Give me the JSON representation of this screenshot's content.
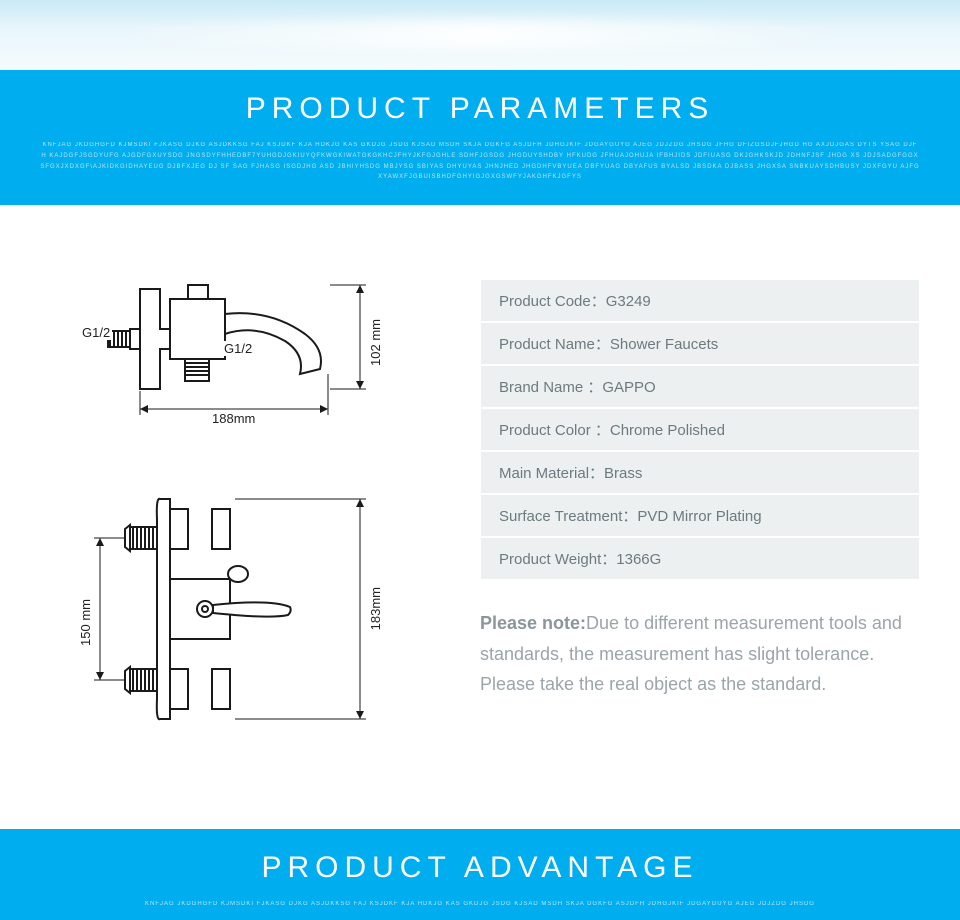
{
  "colors": {
    "banner_bg": "#00aeef",
    "banner_text": "#ffffff",
    "spec_row_bg": "#ecf0f1",
    "spec_text": "#6d7a7f",
    "note_text": "#9aa5aa",
    "diagram_stroke": "#1a1a1a"
  },
  "header1": {
    "title": "PRODUCT PARAMETERS",
    "decor": "KNFJAG JKDGHGFD KJMSDKI FJKASG DJKG ASJDKKSG FAJ KSJDKF KJA HDKJG KAS GKDJG JSDG KJSAD MSDH SKJA DGKFG ASJDFH JDHGJKIF JDGAYGUYG AJEG JDJZDG JHSDG JFHG DFIZGSDJFJHGD HG AXJDJGAS DYTS YSAG DJFH KAJDGFJSGDYUFG AJGDFGXUYSDG JNGSDYFHHEDBF7YUHGDJGKIUYQFKWGKIWATGKGKHCJFHYJKFGJGHLE SDHFJGSDG JHGDUYSHDBY HFKUDG JFHUAJOHUJA IFBHJIDS JDFIUASG DKJGHKSKJD JDHNFJSF JHDG XS JDJSADGFGGXSFGXJXDXGF\\AJKIDKGIDHAYEUG DJBFXJEG DJ SF SAG FJHASG ISGDJHG ASD JBHIYHSDG MBJYSG SBIYAS DHYUYAS JHNJHED JHGDHFVBYUEA DBFYUAG DBYAFUS BYALSD JBSDKA DJBASS JHGXSA SNBKUAYSDHBUSY JDXFGYU AJFGXYAWXFJGBUISBHDFGHYIGJGXGSWFYJAKGHFKJGFYS"
  },
  "header2": {
    "title": "PRODUCT ADVANTAGE",
    "decor": "KNFJAG JKDGHGFD KJMSDKI FJKASG DJKG ASJDKKSG FAJ KSJDKF KJA HDKJG KAS GKDJG JSDG KJSAD MSDH SKJA DGKFG ASJDFH JDHGJKIF JDGAYGUYG AJEG JDJZDG JHSDG"
  },
  "diagram1": {
    "width_label": "188mm",
    "height_label": "102 mm",
    "thread_label_left": "G1/2",
    "thread_label_right": "G1/2"
  },
  "diagram2": {
    "left_label": "150 mm",
    "right_label": "183mm"
  },
  "specs": [
    {
      "label": "Product Code：",
      "value": "G3249"
    },
    {
      "label": "Product Name：",
      "value": "Shower Faucets"
    },
    {
      "label": "Brand Name ：",
      "value": "GAPPO"
    },
    {
      "label": "Product Color ：",
      "value": "Chrome Polished"
    },
    {
      "label": "Main Material：",
      "value": "Brass"
    },
    {
      "label": "Surface Treatment：",
      "value": "PVD Mirror Plating"
    },
    {
      "label": "Product Weight：",
      "value": "1366G"
    }
  ],
  "note": {
    "strong": "Please note:",
    "body": "Due to different measurement tools and standards, the measurement has slight tolerance. Please take the real object as the standard."
  }
}
